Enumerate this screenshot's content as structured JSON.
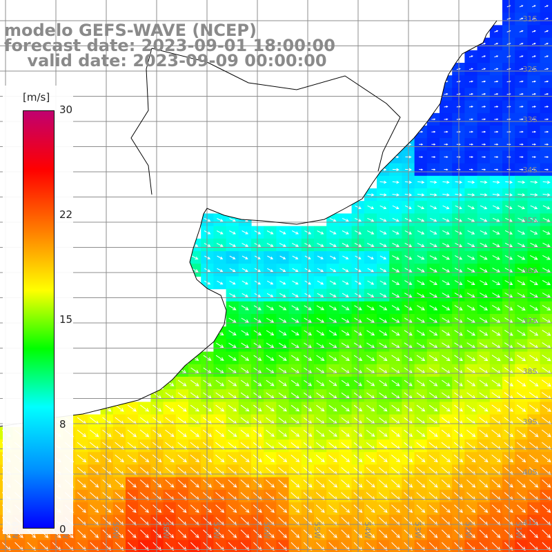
{
  "title": {
    "line1": "modelo GEFS-WAVE (NCEP)",
    "line2": "forecast date: 2023-09-01 18:00:00",
    "line3": "    valid date: 2023-09-09 00:00:00"
  },
  "colorbar": {
    "unit": "[m/s]",
    "ticks": [
      "30",
      "22",
      "15",
      "8",
      "0"
    ],
    "tick_values": [
      30,
      22,
      15,
      8,
      0
    ],
    "range": [
      0,
      30
    ],
    "colors": [
      "#0000ff",
      "#0090ff",
      "#00ffff",
      "#00ff00",
      "#ffff00",
      "#ff8000",
      "#ff0000",
      "#c00070"
    ]
  },
  "map": {
    "field": "wind speed with direction arrows",
    "lat_labels": [
      "31S",
      "32S",
      "33S",
      "34S",
      "35S",
      "36S",
      "37S",
      "38S",
      "39S",
      "40S",
      "41S"
    ],
    "lon_labels": [
      "61W",
      "60W",
      "59W",
      "58W",
      "57W",
      "56W",
      "55W",
      "54W",
      "53W",
      "52W",
      "51W"
    ],
    "land_color": "#ffffff",
    "grid_color": "#8c8c8c",
    "coast_color": "#000000"
  }
}
